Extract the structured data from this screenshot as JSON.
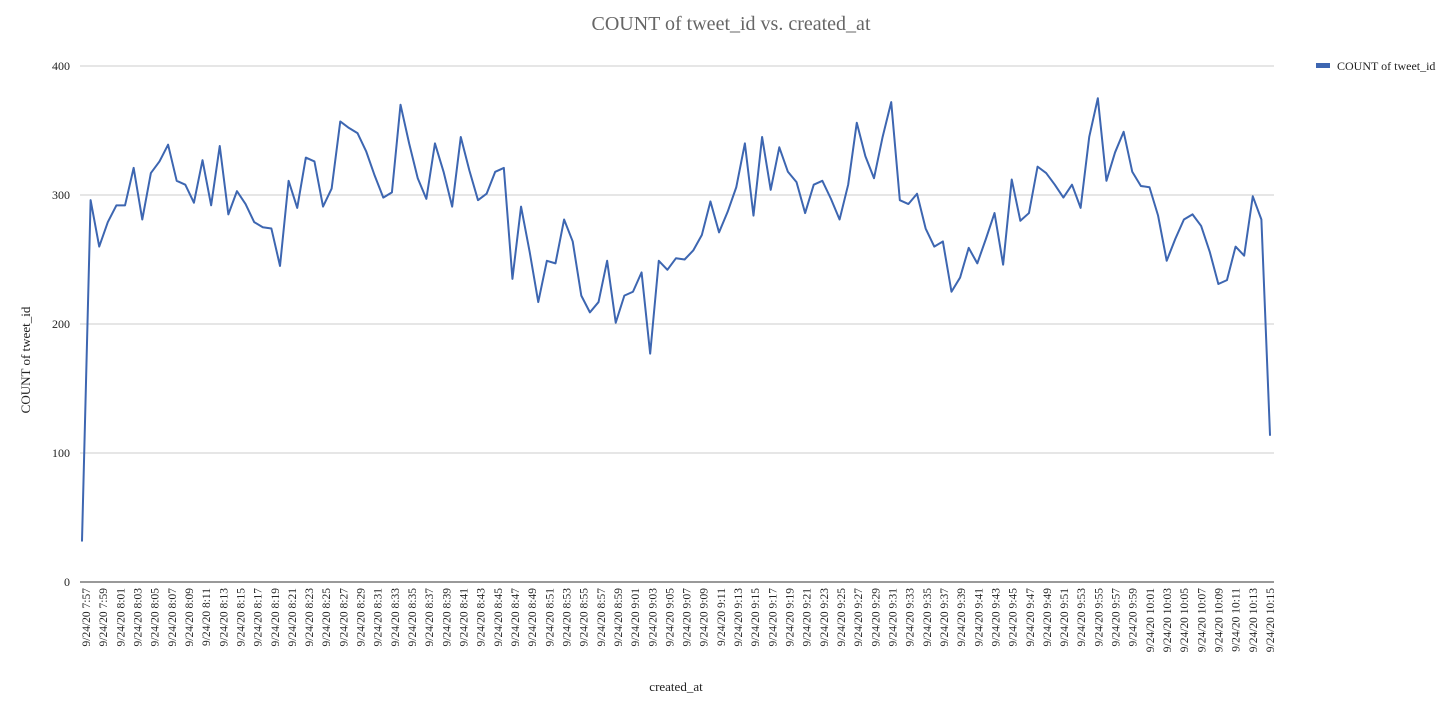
{
  "chart_data": {
    "type": "line",
    "title": "COUNT of tweet_id vs. created_at",
    "xlabel": "created_at",
    "ylabel": "COUNT of tweet_id",
    "ylim": [
      0,
      400
    ],
    "yticks": [
      0,
      100,
      200,
      300,
      400
    ],
    "grid": true,
    "legend_position": "top-right",
    "xtick_labels": [
      "9/24/20 7:57",
      "9/24/20 7:59",
      "9/24/20 8:01",
      "9/24/20 8:03",
      "9/24/20 8:05",
      "9/24/20 8:07",
      "9/24/20 8:09",
      "9/24/20 8:11",
      "9/24/20 8:13",
      "9/24/20 8:15",
      "9/24/20 8:17",
      "9/24/20 8:19",
      "9/24/20 8:21",
      "9/24/20 8:23",
      "9/24/20 8:25",
      "9/24/20 8:27",
      "9/24/20 8:29",
      "9/24/20 8:31",
      "9/24/20 8:33",
      "9/24/20 8:35",
      "9/24/20 8:37",
      "9/24/20 8:39",
      "9/24/20 8:41",
      "9/24/20 8:43",
      "9/24/20 8:45",
      "9/24/20 8:47",
      "9/24/20 8:49",
      "9/24/20 8:51",
      "9/24/20 8:53",
      "9/24/20 8:55",
      "9/24/20 8:57",
      "9/24/20 8:59",
      "9/24/20 9:01",
      "9/24/20 9:03",
      "9/24/20 9:05",
      "9/24/20 9:07",
      "9/24/20 9:09",
      "9/24/20 9:11",
      "9/24/20 9:13",
      "9/24/20 9:15",
      "9/24/20 9:17",
      "9/24/20 9:19",
      "9/24/20 9:21",
      "9/24/20 9:23",
      "9/24/20 9:25",
      "9/24/20 9:27",
      "9/24/20 9:29",
      "9/24/20 9:31",
      "9/24/20 9:33",
      "9/24/20 9:35",
      "9/24/20 9:37",
      "9/24/20 9:39",
      "9/24/20 9:41",
      "9/24/20 9:43",
      "9/24/20 9:45",
      "9/24/20 9:47",
      "9/24/20 9:49",
      "9/24/20 9:51",
      "9/24/20 9:53",
      "9/24/20 9:55",
      "9/24/20 9:57",
      "9/24/20 9:59",
      "9/24/20 10:01",
      "9/24/20 10:03",
      "9/24/20 10:05",
      "9/24/20 10:07",
      "9/24/20 10:09",
      "9/24/20 10:11",
      "9/24/20 10:13",
      "9/24/20 10:15"
    ],
    "series": [
      {
        "name": "COUNT of tweet_id",
        "color": "#3d66b1",
        "values": [
          32,
          296,
          260,
          279,
          292,
          292,
          321,
          281,
          317,
          326,
          339,
          311,
          308,
          294,
          327,
          292,
          338,
          285,
          303,
          293,
          279,
          275,
          274,
          245,
          311,
          290,
          329,
          326,
          291,
          305,
          357,
          352,
          348,
          334,
          315,
          298,
          302,
          370,
          340,
          313,
          297,
          340,
          318,
          291,
          345,
          319,
          296,
          301,
          318,
          321,
          235,
          291,
          256,
          217,
          249,
          247,
          281,
          264,
          222,
          209,
          217,
          249,
          201,
          222,
          225,
          240,
          177,
          249,
          242,
          251,
          250,
          257,
          269,
          295,
          271,
          287,
          306,
          340,
          284,
          345,
          304,
          337,
          318,
          310,
          286,
          308,
          311,
          297,
          281,
          308,
          356,
          330,
          313,
          345,
          372,
          296,
          293,
          301,
          274,
          260,
          264,
          225,
          236,
          259,
          247,
          266,
          286,
          246,
          312,
          280,
          286,
          322,
          317,
          308,
          298,
          308,
          290,
          345,
          375,
          311,
          333,
          349,
          318,
          307,
          306,
          284,
          249,
          266,
          281,
          285,
          276,
          256,
          231,
          234,
          260,
          253,
          299,
          281,
          114
        ]
      }
    ]
  }
}
